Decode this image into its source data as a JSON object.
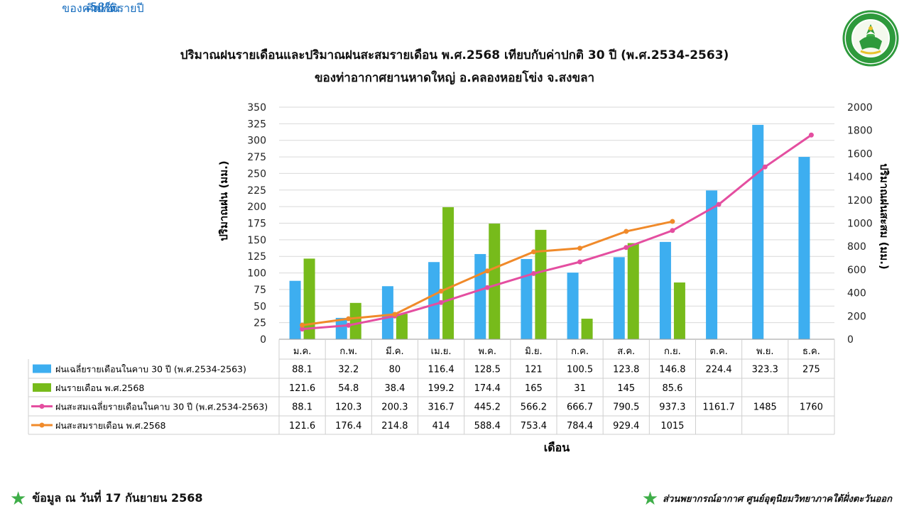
{
  "header": {
    "title_line1": "ปริมาณฝนรายเดือนและปริมาณฝนสะสมรายเดือน  พ.ศ.2568  เทียบกับค่าปกติ 30 ปี (พ.ศ.2534-2563)",
    "title_line2": "ของท่าอากาศยานหาดใหญ่  อ.คลองหอยโข่ง  จ.สงขลา"
  },
  "summary": {
    "line1": "คิดเป็น",
    "percent": "58%",
    "line3": "ของค่าปกติรายปี"
  },
  "footer": {
    "data_date": "ข้อมูล ณ วันที่ 17 กันยายน 2568",
    "source": "ส่วนพยากรณ์อากาศ ศูนย์อุตุนิยมวิทยาภาคใต้ฝั่งตะวันออก"
  },
  "colors": {
    "normal_bar": "#3daef0",
    "actual_bar": "#77bb1b",
    "normal_cum": "#e44ea0",
    "actual_cum": "#f08a2a",
    "logo_green": "#2e9a3c"
  },
  "chart_data": {
    "type": "bar",
    "xlabel": "เดือน",
    "ylabel": "ปริมาณฝน (มม.)",
    "y2label": "ปริมาณฝนสะสม (มม.)",
    "ylim": [
      0,
      350
    ],
    "yticks": [
      0,
      25,
      50,
      75,
      100,
      125,
      150,
      175,
      200,
      225,
      250,
      275,
      300,
      325,
      350
    ],
    "y2lim": [
      0,
      2000
    ],
    "y2ticks": [
      0,
      200,
      400,
      600,
      800,
      1000,
      1200,
      1400,
      1600,
      1800,
      2000
    ],
    "grid": true,
    "categories": [
      "ม.ค.",
      "ก.พ.",
      "มี.ค.",
      "เม.ย.",
      "พ.ค.",
      "มิ.ย.",
      "ก.ค.",
      "ส.ค.",
      "ก.ย.",
      "ต.ค.",
      "พ.ย.",
      "ธ.ค."
    ],
    "series": [
      {
        "name": "ฝนเฉลี่ยรายเดือนในคาบ 30 ปี (พ.ศ.2534-2563)",
        "type": "bar",
        "axis": "left",
        "values": [
          88.1,
          32.2,
          80,
          116.4,
          128.5,
          121,
          100.5,
          123.8,
          146.8,
          224.4,
          323.3,
          275
        ]
      },
      {
        "name": "ฝนรายเดือน พ.ศ.2568",
        "type": "bar",
        "axis": "left",
        "values": [
          121.6,
          54.8,
          38.4,
          199.2,
          174.4,
          165,
          31,
          145,
          85.6,
          null,
          null,
          null
        ]
      },
      {
        "name": "ฝนสะสมเฉลี่ยรายเดือนในคาบ 30 ปี (พ.ศ.2534-2563)",
        "type": "line",
        "axis": "right",
        "values": [
          88.1,
          120.3,
          200.3,
          316.7,
          445.2,
          566.2,
          666.7,
          790.5,
          937.3,
          1161.7,
          1485,
          1760
        ]
      },
      {
        "name": "ฝนสะสมรายเดือน พ.ศ.2568",
        "type": "line",
        "axis": "right",
        "values": [
          121.6,
          176.4,
          214.8,
          414,
          588.4,
          753.4,
          784.4,
          929.4,
          1015,
          null,
          null,
          null
        ]
      }
    ]
  }
}
